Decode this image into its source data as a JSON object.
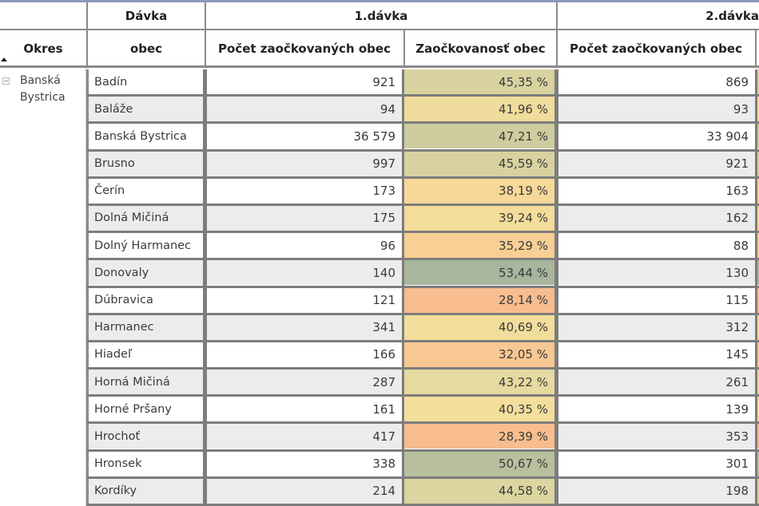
{
  "header": {
    "row1": {
      "blank": "",
      "davka_label": "Dávka",
      "group1": "1.dávka",
      "group2": "2.dávka"
    },
    "row2": {
      "okres": "Okres",
      "obec": "obec",
      "pocet1": "Počet zaočkovaných obec",
      "zaockovanost1": "Zaočkovanosť obec",
      "pocet2": "Počet zaočkovaných obec"
    }
  },
  "okres": {
    "name": "Banská Bystrica",
    "expand_icon": "collapse-minus-icon",
    "sort_icon": "sort-ascending-icon"
  },
  "colors": {
    "header_border": "#8b9bbf",
    "grid_line": "#7d7d7d",
    "row_even": "#ffffff",
    "row_odd": "#ececec",
    "scale_low": "#f7bd8e",
    "scale_mid_low": "#f6d296",
    "scale_mid": "#f2df9c",
    "scale_mid_high": "#e5d9a0",
    "scale_high": "#d2cfa0",
    "scale_top": "#a9b79d"
  },
  "rows": [
    {
      "obec": "Badín",
      "pocet1": "921",
      "zaockovanost1": "45,35 %",
      "pocet2": "869",
      "color": "#d9d3a0"
    },
    {
      "obec": "Baláže",
      "pocet1": "94",
      "zaockovanost1": "41,96 %",
      "pocet2": "93",
      "color": "#f0dc9c"
    },
    {
      "obec": "Banská Bystrica",
      "pocet1": "36 579",
      "zaockovanost1": "47,21 %",
      "pocet2": "33 904",
      "color": "#cfcc9f"
    },
    {
      "obec": "Brusno",
      "pocet1": "997",
      "zaockovanost1": "45,59 %",
      "pocet2": "921",
      "color": "#d8d2a0"
    },
    {
      "obec": "Čerín",
      "pocet1": "173",
      "zaockovanost1": "38,19 %",
      "pocet2": "163",
      "color": "#f6d898"
    },
    {
      "obec": "Dolná Mičiná",
      "pocet1": "175",
      "zaockovanost1": "39,24 %",
      "pocet2": "162",
      "color": "#f4dc9a"
    },
    {
      "obec": "Dolný Harmanec",
      "pocet1": "96",
      "zaockovanost1": "35,29 %",
      "pocet2": "88",
      "color": "#f8cf94"
    },
    {
      "obec": "Donovaly",
      "pocet1": "140",
      "zaockovanost1": "53,44 %",
      "pocet2": "130",
      "color": "#a7b69d"
    },
    {
      "obec": "Dúbravica",
      "pocet1": "121",
      "zaockovanost1": "28,14 %",
      "pocet2": "115",
      "color": "#f8bd8e"
    },
    {
      "obec": "Harmanec",
      "pocet1": "341",
      "zaockovanost1": "40,69 %",
      "pocet2": "312",
      "color": "#f2de9c"
    },
    {
      "obec": "Hiadeľ",
      "pocet1": "166",
      "zaockovanost1": "32,05 %",
      "pocet2": "145",
      "color": "#f8c892"
    },
    {
      "obec": "Horná Mičiná",
      "pocet1": "287",
      "zaockovanost1": "43,22 %",
      "pocet2": "261",
      "color": "#e6daa0"
    },
    {
      "obec": "Horné Pršany",
      "pocet1": "161",
      "zaockovanost1": "40,35 %",
      "pocet2": "139",
      "color": "#f3de9c"
    },
    {
      "obec": "Hrochoť",
      "pocet1": "417",
      "zaockovanost1": "28,39 %",
      "pocet2": "353",
      "color": "#f8bd8e"
    },
    {
      "obec": "Hronsek",
      "pocet1": "338",
      "zaockovanost1": "50,67 %",
      "pocet2": "301",
      "color": "#b8c09e"
    },
    {
      "obec": "Kordíky",
      "pocet1": "214",
      "zaockovanost1": "44,58 %",
      "pocet2": "198",
      "color": "#dcd5a0"
    }
  ]
}
